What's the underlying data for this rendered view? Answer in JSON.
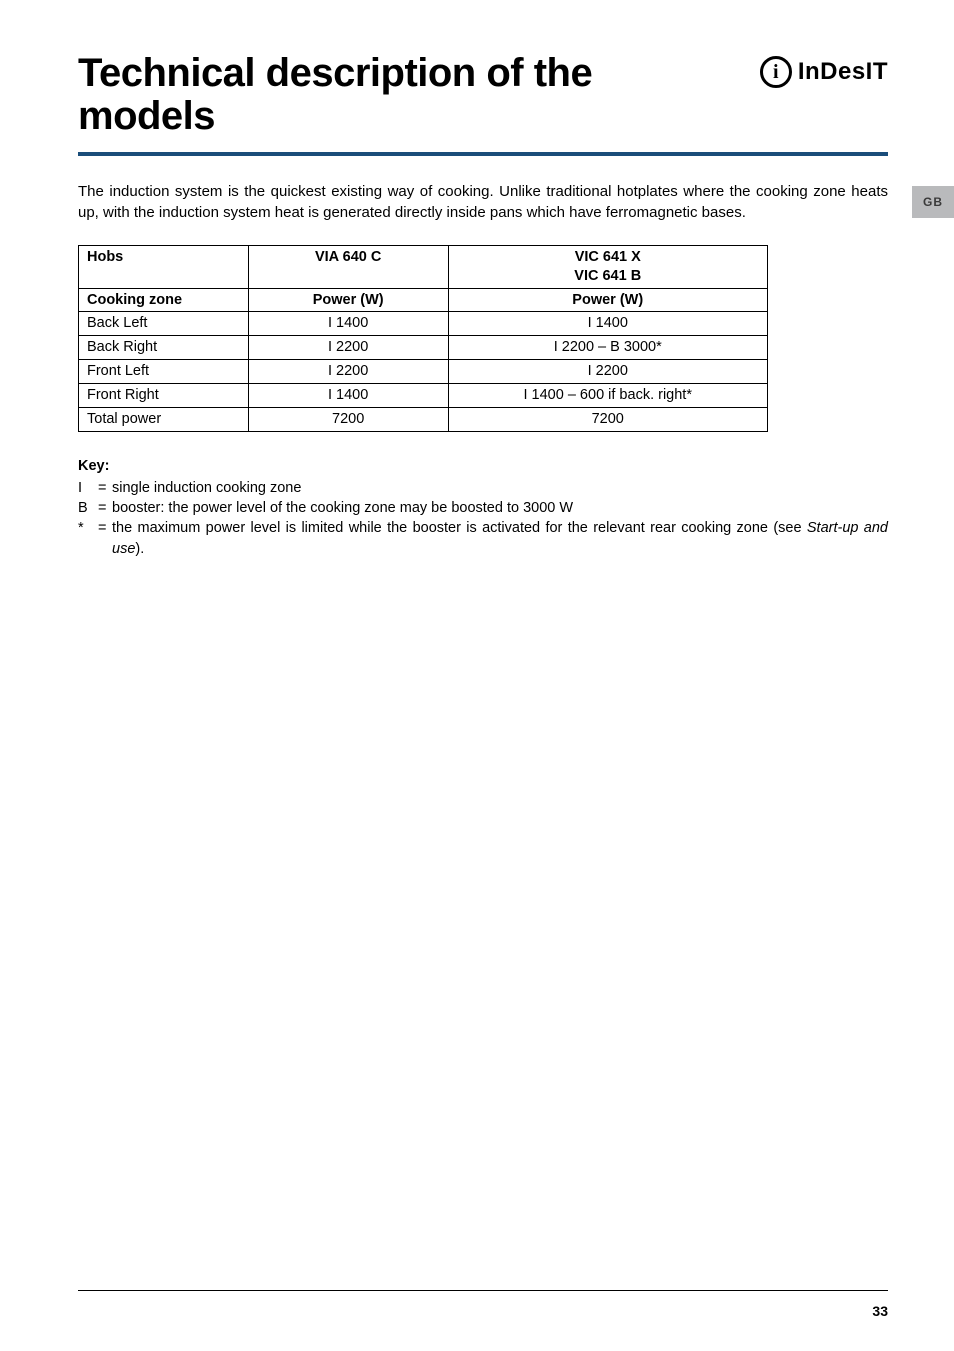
{
  "header": {
    "title": "Technical description of the models",
    "logo_letter": "i",
    "logo_text": "InDesIT"
  },
  "side_tab": "GB",
  "intro": "The induction system is the quickest existing way of cooking. Unlike traditional hotplates where the cooking zone heats up, with the induction system heat is generated directly inside pans which have ferromagnetic bases.",
  "table": {
    "header1": {
      "c1": "Hobs",
      "c2": "VIA 640 C",
      "c3a": "VIC 641 X",
      "c3b": "VIC 641 B"
    },
    "header2": {
      "c1": "Cooking zone",
      "c2": "Power (W)",
      "c3": "Power (W)"
    },
    "rows": [
      {
        "c1": "Back Left",
        "c2": "I 1400",
        "c3": "I 1400"
      },
      {
        "c1": "Back Right",
        "c2": "I 2200",
        "c3": "I 2200 – B 3000*"
      },
      {
        "c1": "Front Left",
        "c2": "I 2200",
        "c3": "I 2200"
      },
      {
        "c1": "Front Right",
        "c2": "I 1400",
        "c3": "I 1400 – 600 if back. right*"
      },
      {
        "c1": "Total power",
        "c2": "7200",
        "c3": "7200"
      }
    ]
  },
  "key": {
    "heading": "Key:",
    "items": [
      {
        "sym": "I",
        "text": "single induction cooking zone"
      },
      {
        "sym": "B",
        "text": "booster: the power level of the cooking zone may be boosted to 3000 W"
      }
    ],
    "star": {
      "sym": "*",
      "pre": "the maximum power level is limited while the booster is activated for the relevant rear cooking zone (see ",
      "ital": "Start-up and use",
      "post": ")."
    }
  },
  "page_number": "33",
  "colors": {
    "rule": "#1a4d7a",
    "tab_bg": "#b9babc",
    "tab_text": "#3a3a3a"
  }
}
